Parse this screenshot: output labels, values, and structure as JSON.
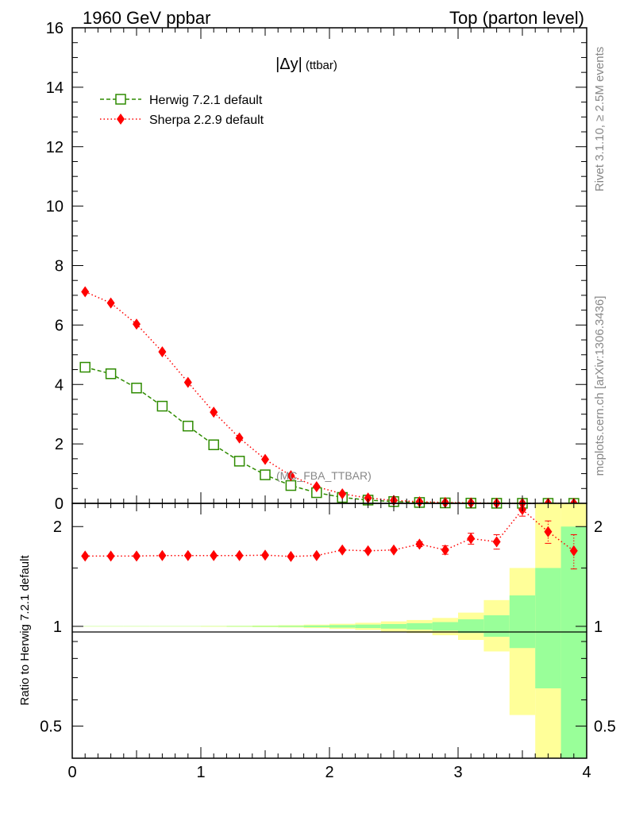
{
  "header": {
    "left": "1960 GeV ppbar",
    "right": "Top (parton level)"
  },
  "side": {
    "rivet": "Rivet 3.1.10, ≥ 2.5M events",
    "mcplots": "mcplots.cern.ch [arXiv:1306.3436]"
  },
  "colors": {
    "herwig": "#2e8b00",
    "sherpa": "#ff0000",
    "band_outer": "#ffff99",
    "band_inner": "#99ff99"
  },
  "chart_data": [
    {
      "type": "line",
      "title": "|Δy| (ttbar)",
      "title_main": "|Δy|",
      "title_sub": "(ttbar)",
      "watermark": "(MC_FBA_TTBAR)",
      "xlim": [
        0,
        4
      ],
      "ylim": [
        0,
        16
      ],
      "xticks": [
        0,
        1,
        2,
        3,
        4
      ],
      "yticks": [
        0,
        2,
        4,
        6,
        8,
        10,
        12,
        14,
        16
      ],
      "ytick_labels": [
        "0",
        "2",
        "4",
        "6",
        "8",
        "10",
        "12",
        "14",
        "16"
      ],
      "legend_position": "top-left",
      "x": [
        0.1,
        0.3,
        0.5,
        0.7,
        0.9,
        1.1,
        1.3,
        1.5,
        1.7,
        1.9,
        2.1,
        2.3,
        2.5,
        2.7,
        2.9,
        3.1,
        3.3,
        3.5,
        3.7,
        3.9
      ],
      "series": [
        {
          "name": "Herwig 7.2.1 default",
          "style": "dashed",
          "marker": "open-square",
          "values": [
            4.58,
            4.36,
            3.88,
            3.27,
            2.6,
            1.97,
            1.42,
            0.96,
            0.6,
            0.36,
            0.2,
            0.11,
            0.06,
            0.03,
            0.015,
            0.008,
            0.004,
            0.002,
            0.001,
            0.0005
          ]
        },
        {
          "name": "Sherpa 2.2.9 default",
          "style": "dotted",
          "marker": "filled-diamond",
          "values": [
            7.12,
            6.74,
            6.03,
            5.1,
            4.07,
            3.07,
            2.2,
            1.48,
            0.93,
            0.56,
            0.32,
            0.18,
            0.1,
            0.055,
            0.03,
            0.016,
            0.008,
            0.005,
            0.002,
            0.001
          ]
        }
      ]
    },
    {
      "type": "line",
      "ylabel": "Ratio to Herwig 7.2.1 default",
      "yscale": "log",
      "xlim": [
        0,
        4
      ],
      "ylim": [
        0.4,
        2.35
      ],
      "xticks": [
        0,
        1,
        2,
        3,
        4
      ],
      "xtick_labels": [
        "0",
        "1",
        "2",
        "3",
        "4"
      ],
      "yticks": [
        0.5,
        1,
        2
      ],
      "ytick_labels": [
        "0.5",
        "1",
        "2"
      ],
      "reference": 1,
      "band_edges": [
        0.0,
        0.2,
        0.4,
        0.6,
        0.8,
        1.0,
        1.2,
        1.4,
        1.6,
        1.8,
        2.0,
        2.2,
        2.4,
        2.6,
        2.8,
        3.0,
        3.2,
        3.4,
        3.6,
        3.8,
        4.0
      ],
      "inner_band": {
        "lo": [
          0.999,
          0.999,
          0.999,
          0.999,
          0.999,
          0.999,
          0.998,
          0.997,
          0.996,
          0.994,
          0.991,
          0.988,
          0.984,
          0.978,
          0.97,
          0.955,
          0.93,
          0.86,
          0.65,
          0.4
        ],
        "hi": [
          1.001,
          1.001,
          1.001,
          1.001,
          1.001,
          1.001,
          1.002,
          1.003,
          1.004,
          1.006,
          1.009,
          1.012,
          1.016,
          1.022,
          1.03,
          1.05,
          1.08,
          1.24,
          1.5,
          2.0
        ]
      },
      "outer_band": {
        "lo": [
          0.998,
          0.998,
          0.998,
          0.998,
          0.998,
          0.997,
          0.996,
          0.994,
          0.992,
          0.988,
          0.982,
          0.975,
          0.965,
          0.955,
          0.94,
          0.91,
          0.84,
          0.54,
          0.4,
          0.4
        ],
        "hi": [
          1.002,
          1.002,
          1.002,
          1.002,
          1.002,
          1.003,
          1.004,
          1.006,
          1.008,
          1.012,
          1.018,
          1.025,
          1.035,
          1.045,
          1.06,
          1.1,
          1.2,
          1.5,
          2.35,
          2.35
        ]
      },
      "x": [
        0.1,
        0.3,
        0.5,
        0.7,
        0.9,
        1.1,
        1.3,
        1.5,
        1.7,
        1.9,
        2.1,
        2.3,
        2.5,
        2.7,
        2.9,
        3.1,
        3.3,
        3.5,
        3.7,
        3.9
      ],
      "series": [
        {
          "name": "Sherpa 2.2.9 default",
          "values": [
            1.63,
            1.63,
            1.63,
            1.635,
            1.635,
            1.635,
            1.635,
            1.64,
            1.625,
            1.635,
            1.7,
            1.69,
            1.7,
            1.77,
            1.7,
            1.84,
            1.8,
            2.25,
            1.93,
            1.69
          ],
          "err": [
            0.005,
            0.005,
            0.005,
            0.005,
            0.005,
            0.005,
            0.006,
            0.008,
            0.01,
            0.012,
            0.015,
            0.02,
            0.02,
            0.03,
            0.05,
            0.07,
            0.09,
            0.1,
            0.15,
            0.2
          ]
        }
      ]
    }
  ]
}
